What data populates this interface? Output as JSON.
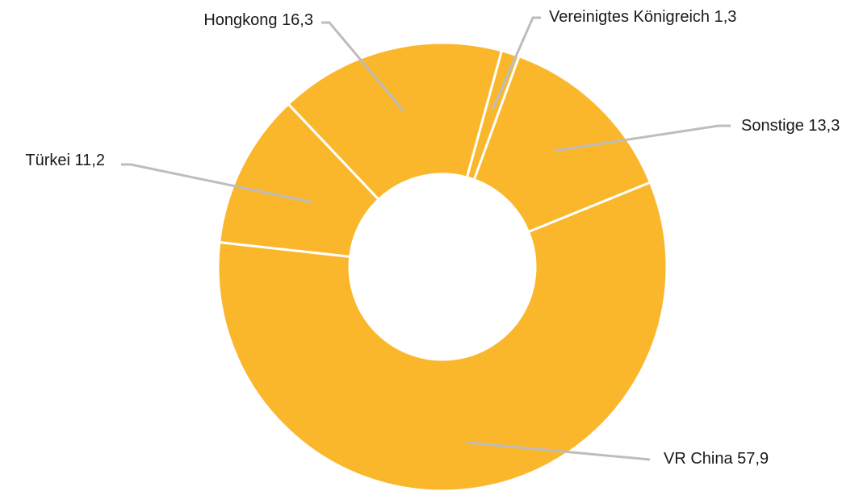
{
  "chart_data": {
    "type": "donut",
    "categories": [
      "Vereinigtes Königreich",
      "Sonstige",
      "VR China",
      "Türkei",
      "Hongkong"
    ],
    "values": [
      1.3,
      13.3,
      57.9,
      11.2,
      16.3
    ],
    "value_labels": [
      "1,3",
      "13,3",
      "57,9",
      "11,2",
      "16,3"
    ],
    "color": "#fbb72b"
  }
}
